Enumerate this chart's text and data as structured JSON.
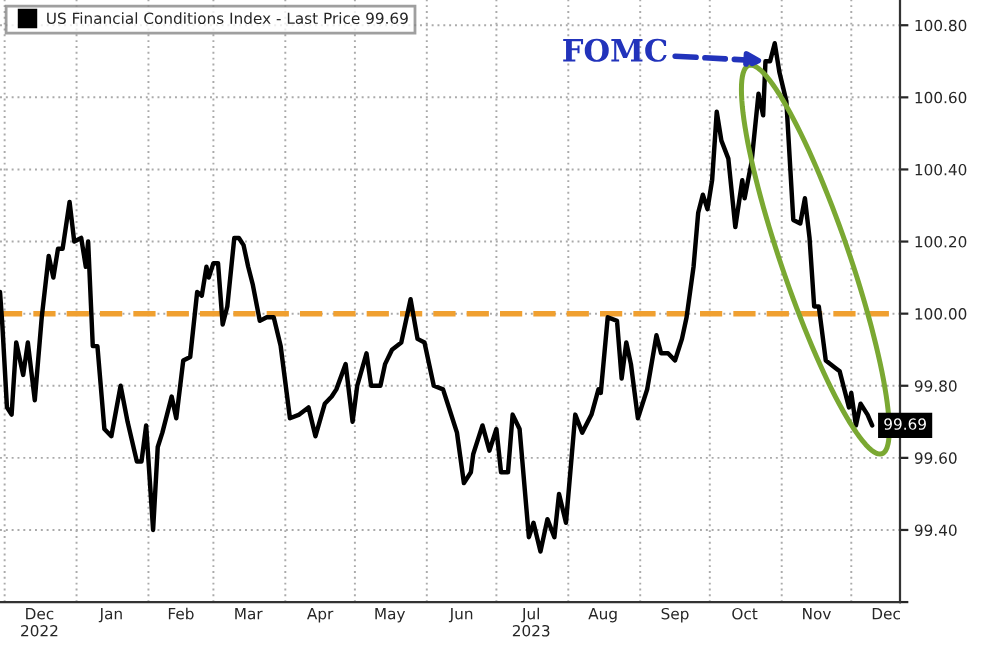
{
  "chart_data": {
    "type": "line",
    "x": [
      "2022-11-29",
      "2022-11-30",
      "2022-12-02",
      "2022-12-04",
      "2022-12-06",
      "2022-12-09",
      "2022-12-11",
      "2022-12-14",
      "2022-12-17",
      "2022-12-20",
      "2022-12-22",
      "2022-12-24",
      "2022-12-26",
      "2022-12-29",
      "2022-12-31",
      "2023-01-03",
      "2023-01-05",
      "2023-01-06",
      "2023-01-08",
      "2023-01-10",
      "2023-01-13",
      "2023-01-16",
      "2023-01-20",
      "2023-01-23",
      "2023-01-27",
      "2023-01-29",
      "2023-01-31",
      "2023-02-03",
      "2023-02-05",
      "2023-02-07",
      "2023-02-11",
      "2023-02-13",
      "2023-02-16",
      "2023-02-19",
      "2023-02-22",
      "2023-02-24",
      "2023-02-26",
      "2023-02-27",
      "2023-03-01",
      "2023-03-03",
      "2023-03-05",
      "2023-03-07",
      "2023-03-10",
      "2023-03-12",
      "2023-03-14",
      "2023-03-16",
      "2023-03-18",
      "2023-03-21",
      "2023-03-24",
      "2023-03-27",
      "2023-03-30",
      "2023-04-03",
      "2023-04-07",
      "2023-04-11",
      "2023-04-14",
      "2023-04-18",
      "2023-04-21",
      "2023-04-23",
      "2023-04-27",
      "2023-04-30",
      "2023-05-02",
      "2023-05-06",
      "2023-05-08",
      "2023-05-12",
      "2023-05-14",
      "2023-05-17",
      "2023-05-21",
      "2023-05-25",
      "2023-05-28",
      "2023-05-31",
      "2023-06-04",
      "2023-06-08",
      "2023-06-10",
      "2023-06-14",
      "2023-06-17",
      "2023-06-20",
      "2023-06-21",
      "2023-06-25",
      "2023-06-28",
      "2023-07-01",
      "2023-07-03",
      "2023-07-06",
      "2023-07-08",
      "2023-07-11",
      "2023-07-15",
      "2023-07-17",
      "2023-07-20",
      "2023-07-23",
      "2023-07-26",
      "2023-07-28",
      "2023-07-31",
      "2023-08-04",
      "2023-08-07",
      "2023-08-11",
      "2023-08-14",
      "2023-08-15",
      "2023-08-18",
      "2023-08-22",
      "2023-08-24",
      "2023-08-26",
      "2023-08-28",
      "2023-08-31",
      "2023-09-04",
      "2023-09-08",
      "2023-09-10",
      "2023-09-13",
      "2023-09-16",
      "2023-09-19",
      "2023-09-21",
      "2023-09-24",
      "2023-09-26",
      "2023-09-28",
      "2023-09-30",
      "2023-10-02",
      "2023-10-04",
      "2023-10-06",
      "2023-10-09",
      "2023-10-12",
      "2023-10-15",
      "2023-10-16",
      "2023-10-19",
      "2023-10-22",
      "2023-10-24",
      "2023-10-25",
      "2023-10-27",
      "2023-10-29",
      "2023-10-31",
      "2023-11-03",
      "2023-11-06",
      "2023-11-09",
      "2023-11-11",
      "2023-11-13",
      "2023-11-15",
      "2023-11-17",
      "2023-11-20",
      "2023-11-24",
      "2023-11-26",
      "2023-11-30",
      "2023-12-01",
      "2023-12-03",
      "2023-12-05",
      "2023-12-08",
      "2023-12-10"
    ],
    "series": [
      {
        "name": "US Financial Conditions Index - Last Price 99.69",
        "color": "#000000",
        "values": [
          100.06,
          99.97,
          99.74,
          99.72,
          99.92,
          99.83,
          99.92,
          99.76,
          99.99,
          100.16,
          100.1,
          100.18,
          100.18,
          100.31,
          100.2,
          100.21,
          100.13,
          100.2,
          99.91,
          99.91,
          99.68,
          99.66,
          99.8,
          99.7,
          99.59,
          99.59,
          99.69,
          99.4,
          99.63,
          99.67,
          99.77,
          99.71,
          99.87,
          99.88,
          100.06,
          100.05,
          100.13,
          100.1,
          100.14,
          100.14,
          99.97,
          100.02,
          100.21,
          100.21,
          100.19,
          100.13,
          100.08,
          99.98,
          99.99,
          99.99,
          99.91,
          99.71,
          99.72,
          99.74,
          99.66,
          99.75,
          99.77,
          99.79,
          99.86,
          99.7,
          99.8,
          99.89,
          99.8,
          99.8,
          99.86,
          99.9,
          99.92,
          100.04,
          99.93,
          99.92,
          99.8,
          99.79,
          99.75,
          99.67,
          99.53,
          99.56,
          99.61,
          99.69,
          99.62,
          99.68,
          99.56,
          99.56,
          99.72,
          99.68,
          99.38,
          99.42,
          99.34,
          99.43,
          99.38,
          99.5,
          99.42,
          99.72,
          99.67,
          99.72,
          99.79,
          99.78,
          99.99,
          99.98,
          99.82,
          99.92,
          99.86,
          99.71,
          99.79,
          99.94,
          99.89,
          99.89,
          99.87,
          99.93,
          99.99,
          100.13,
          100.28,
          100.33,
          100.29,
          100.37,
          100.56,
          100.48,
          100.43,
          100.24,
          100.37,
          100.32,
          100.42,
          100.61,
          100.55,
          100.7,
          100.7,
          100.75,
          100.67,
          100.59,
          100.26,
          100.25,
          100.32,
          100.21,
          100.02,
          100.02,
          99.87,
          99.85,
          99.84,
          99.74,
          99.78,
          99.69,
          99.75,
          99.72,
          99.69
        ],
        "value_labels": [
          null,
          null,
          null,
          null,
          null,
          null,
          null,
          null,
          null,
          null,
          null,
          null,
          null,
          null,
          null,
          null,
          null,
          null,
          null,
          null,
          null,
          null,
          null,
          null,
          null,
          null,
          null,
          null,
          null,
          null,
          null,
          null,
          null,
          null,
          null,
          null,
          null,
          null,
          null,
          null,
          null,
          null,
          null,
          null,
          null,
          null,
          null,
          null,
          null,
          null,
          null,
          null,
          null,
          null,
          null,
          null,
          null,
          null,
          null,
          null,
          null,
          null,
          null,
          null,
          null,
          null,
          null,
          null,
          null,
          null,
          null,
          null,
          null,
          null,
          null,
          null,
          null,
          null,
          null,
          null,
          null,
          null,
          null,
          null,
          null,
          null,
          null,
          null,
          null,
          null,
          null,
          null,
          null,
          null,
          null,
          null,
          null,
          null,
          null,
          null,
          null,
          null,
          null,
          null,
          null,
          null,
          null,
          null,
          null,
          null,
          null,
          null,
          null,
          null,
          null,
          null,
          null,
          null,
          null,
          null,
          null,
          null,
          null,
          null,
          null,
          null,
          null,
          null,
          null,
          null,
          null,
          null,
          null,
          null,
          null,
          null,
          null,
          null,
          null,
          null,
          null,
          null,
          "99.69"
        ]
      }
    ],
    "xlim": [
      "2022-11-29",
      "2023-12-22"
    ],
    "xticks": [
      {
        "value": "2022-12-01",
        "label": null
      },
      {
        "value": "2022-12-16",
        "label": "Dec\n2022"
      },
      {
        "value": "2023-01-01",
        "label": null
      },
      {
        "value": "2023-01-16",
        "label": "Jan"
      },
      {
        "value": "2023-02-01",
        "label": null
      },
      {
        "value": "2023-02-15",
        "label": "Feb"
      },
      {
        "value": "2023-03-01",
        "label": null
      },
      {
        "value": "2023-03-16",
        "label": "Mar"
      },
      {
        "value": "2023-04-01",
        "label": null
      },
      {
        "value": "2023-04-16",
        "label": "Apr"
      },
      {
        "value": "2023-05-01",
        "label": null
      },
      {
        "value": "2023-05-16",
        "label": "May"
      },
      {
        "value": "2023-06-01",
        "label": null
      },
      {
        "value": "2023-06-16",
        "label": "Jun"
      },
      {
        "value": "2023-07-01",
        "label": null
      },
      {
        "value": "2023-07-16",
        "label": "Jul\n2023"
      },
      {
        "value": "2023-08-01",
        "label": null
      },
      {
        "value": "2023-08-16",
        "label": "Aug"
      },
      {
        "value": "2023-09-01",
        "label": null
      },
      {
        "value": "2023-09-16",
        "label": "Sep"
      },
      {
        "value": "2023-10-01",
        "label": null
      },
      {
        "value": "2023-10-16",
        "label": "Oct"
      },
      {
        "value": "2023-11-01",
        "label": null
      },
      {
        "value": "2023-11-16",
        "label": "Nov"
      },
      {
        "value": "2023-12-01",
        "label": null
      },
      {
        "value": "2023-12-16",
        "label": "Dec"
      }
    ],
    "ylim": [
      99.2,
      100.87
    ],
    "yticks": [
      {
        "value": 99.2,
        "label": null
      },
      {
        "value": 99.4,
        "label": "99.40"
      },
      {
        "value": 99.6,
        "label": "99.60"
      },
      {
        "value": 99.8,
        "label": "99.80"
      },
      {
        "value": 100.0,
        "label": "100.00"
      },
      {
        "value": 100.2,
        "label": "100.20"
      },
      {
        "value": 100.4,
        "label": "100.40"
      },
      {
        "value": 100.6,
        "label": "100.60"
      },
      {
        "value": 100.8,
        "label": "100.80"
      }
    ],
    "ref_lines": [
      {
        "axis": "y",
        "value": 100.0,
        "label": null,
        "color": "#f0a030",
        "line_style": "dashed"
      }
    ],
    "annotations": [
      {
        "text": "FOMC",
        "x": "2023-10-27",
        "y": 100.7
      }
    ],
    "grid": true,
    "legend": "top left",
    "marker": "none",
    "line_style": "solid"
  }
}
